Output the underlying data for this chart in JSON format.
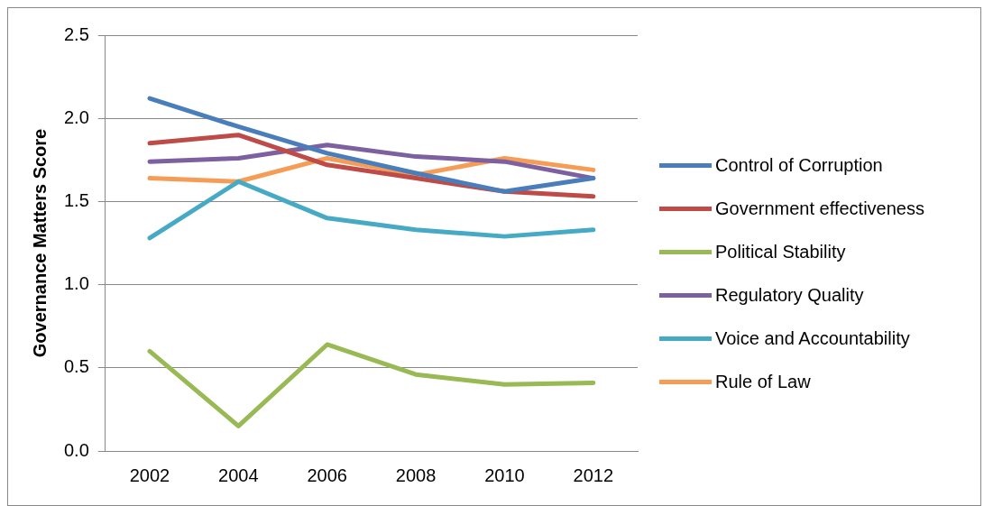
{
  "chart_data": {
    "type": "line",
    "ylabel": "Governance Matters Score",
    "categories": [
      "2002",
      "2004",
      "2006",
      "2008",
      "2010",
      "2012"
    ],
    "ylim": [
      0,
      2.5
    ],
    "yticks": [
      {
        "value": 0,
        "label": "0.0"
      },
      {
        "value": 0.5,
        "label": "0.5"
      },
      {
        "value": 1,
        "label": "1.0"
      },
      {
        "value": 1.5,
        "label": "1.5"
      },
      {
        "value": 2,
        "label": "2.0"
      },
      {
        "value": 2.5,
        "label": "2.5"
      }
    ],
    "grid": "y",
    "legend": "right",
    "marker": "none",
    "line_style": "solid",
    "series": [
      {
        "name": "Control of Corruption",
        "color": "#4a7ebb",
        "values": [
          2.12,
          1.95,
          1.79,
          1.67,
          1.56,
          1.64
        ]
      },
      {
        "name": "Government effectiveness",
        "color": "#be4b48",
        "values": [
          1.85,
          1.9,
          1.72,
          1.64,
          1.56,
          1.53
        ]
      },
      {
        "name": "Political Stability",
        "color": "#98b954",
        "values": [
          0.6,
          0.15,
          0.64,
          0.46,
          0.4,
          0.41
        ]
      },
      {
        "name": "Regulatory Quality",
        "color": "#7d60a0",
        "values": [
          1.74,
          1.76,
          1.84,
          1.77,
          1.74,
          1.64
        ]
      },
      {
        "name": "Voice and Accountability",
        "color": "#46aac5",
        "values": [
          1.28,
          1.62,
          1.4,
          1.33,
          1.29,
          1.33
        ]
      },
      {
        "name": "Rule of Law",
        "color": "#f59d56",
        "values": [
          1.64,
          1.62,
          1.76,
          1.66,
          1.76,
          1.69
        ]
      }
    ]
  }
}
